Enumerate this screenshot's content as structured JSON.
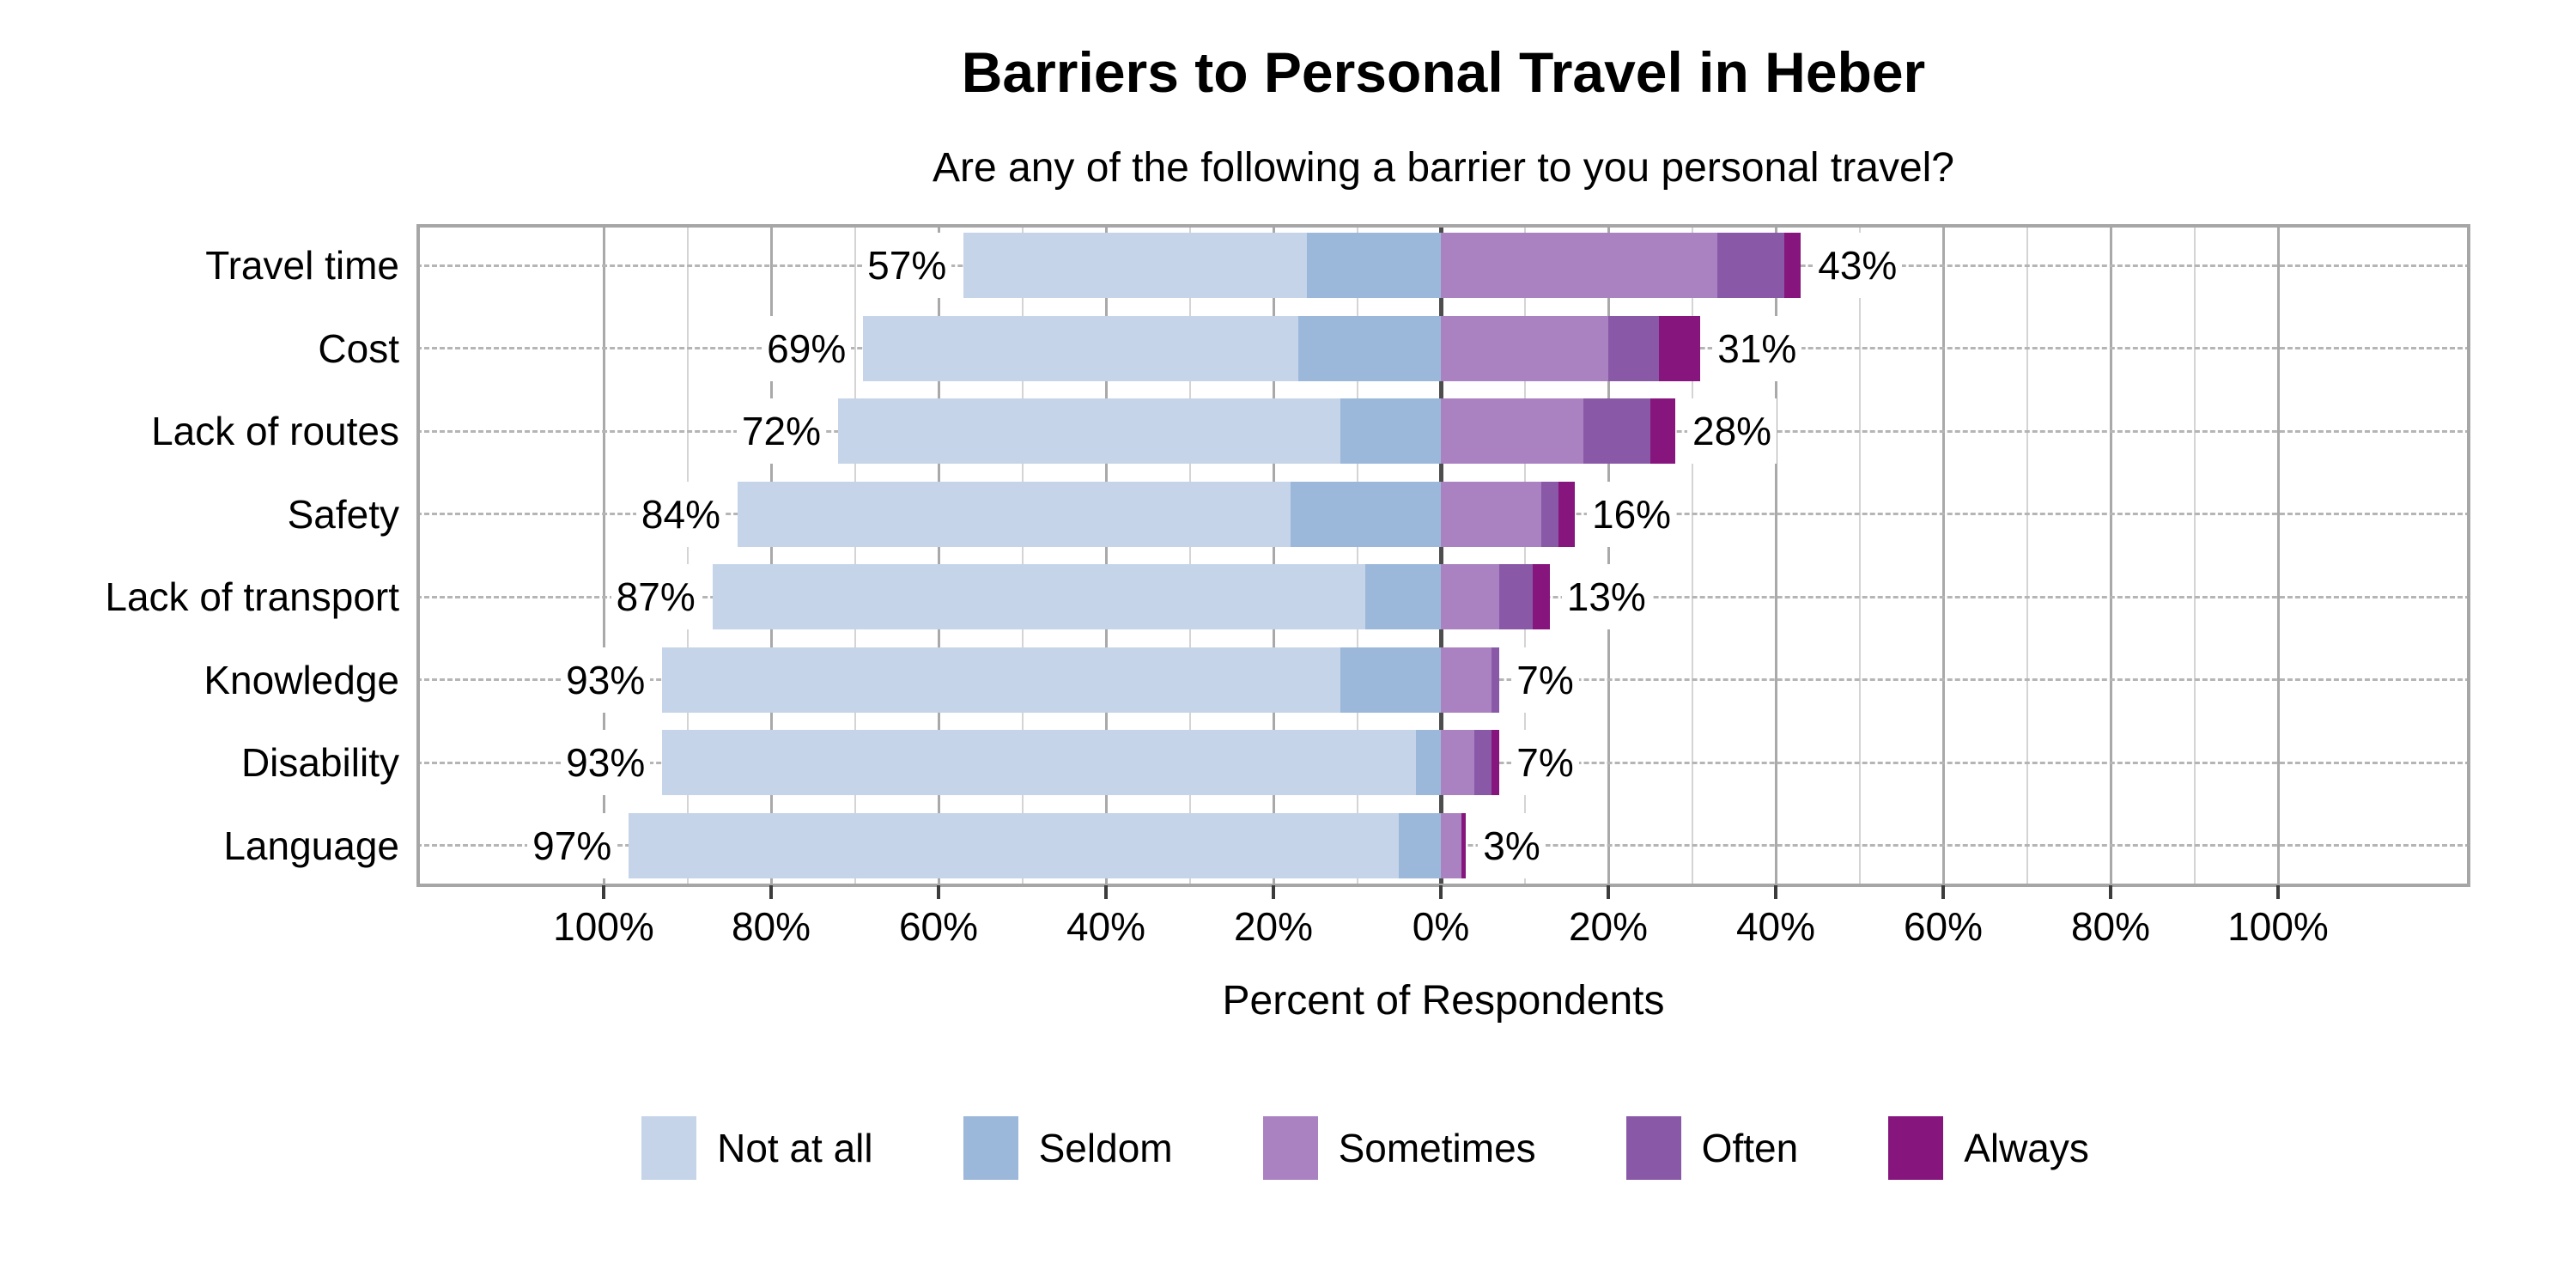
{
  "title": "Barriers to Personal Travel in Heber",
  "subtitle": "Are any of the following a barrier to you personal travel?",
  "chart_data": {
    "type": "bar",
    "variant": "horizontal-diverging-stacked",
    "title": "Barriers to Personal Travel in Heber",
    "subtitle": "Are any of the following a barrier to you personal travel?",
    "xlabel": "Percent of Respondents",
    "categories": [
      "Travel time",
      "Cost",
      "Lack of routes",
      "Safety",
      "Lack of transport",
      "Knowledge",
      "Disability",
      "Language"
    ],
    "series": [
      {
        "name": "Not at all",
        "side": "left",
        "color": "#c5d4e8",
        "values": [
          41,
          52,
          60,
          66,
          78,
          81,
          90,
          92
        ]
      },
      {
        "name": "Seldom",
        "side": "left",
        "color": "#9bb8da",
        "values": [
          16,
          17,
          12,
          18,
          9,
          12,
          3,
          5
        ]
      },
      {
        "name": "Sometimes",
        "side": "right",
        "color": "#aa82c1",
        "values": [
          33,
          20,
          17,
          12,
          7,
          6,
          4,
          2.5
        ]
      },
      {
        "name": "Often",
        "side": "right",
        "color": "#8959a8",
        "values": [
          8,
          6,
          8,
          2,
          4,
          1,
          2,
          0
        ]
      },
      {
        "name": "Always",
        "side": "right",
        "color": "#86157d",
        "values": [
          2,
          5,
          3,
          2,
          2,
          0,
          1,
          0.5
        ]
      }
    ],
    "left_totals": [
      57,
      69,
      72,
      84,
      87,
      93,
      93,
      97
    ],
    "right_totals": [
      43,
      31,
      28,
      16,
      13,
      7,
      7,
      3
    ],
    "left_total_labels": [
      "57%",
      "69%",
      "72%",
      "84%",
      "87%",
      "93%",
      "93%",
      "97%"
    ],
    "right_total_labels": [
      "43%",
      "31%",
      "28%",
      "16%",
      "13%",
      "7%",
      "7%",
      "3%"
    ],
    "x_axis": {
      "label": "Percent of Respondents",
      "xlim": [
        -123,
        123
      ],
      "major_ticks": [
        {
          "value": -100,
          "label": "100%"
        },
        {
          "value": -80,
          "label": "80%"
        },
        {
          "value": -60,
          "label": "60%"
        },
        {
          "value": -40,
          "label": "40%"
        },
        {
          "value": -20,
          "label": "20%"
        },
        {
          "value": 0,
          "label": "0%"
        },
        {
          "value": 20,
          "label": "20%"
        },
        {
          "value": 40,
          "label": "40%"
        },
        {
          "value": 60,
          "label": "60%"
        },
        {
          "value": 80,
          "label": "80%"
        },
        {
          "value": 100,
          "label": "100%"
        }
      ],
      "minor_grid_values": [
        -90,
        -70,
        -50,
        -30,
        -10,
        10,
        30,
        50,
        70,
        90
      ],
      "zero_line": true,
      "grid": true
    },
    "legend_position": "bottom",
    "row_guides": "dashed"
  },
  "colors": {
    "grid_minor": "#d4d4d4",
    "grid_major": "#a9a9a9",
    "zero_line": "#4d4d4d",
    "row_guide": "#b5b5b5",
    "plot_border": "#a6a6a6",
    "tick": "#3c3c3c",
    "text": "#000000",
    "background": "#ffffff"
  }
}
